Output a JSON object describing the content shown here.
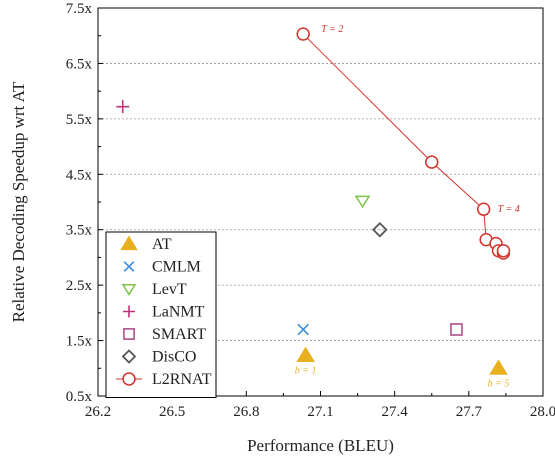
{
  "chart_data": {
    "type": "scatter",
    "xlabel": "Performance (BLEU)",
    "ylabel": "Relative Decoding Speedup wrt AT",
    "xlim": [
      26.2,
      28.0
    ],
    "ylim": [
      0.5,
      7.5
    ],
    "xticks": [
      26.2,
      26.5,
      26.8,
      27.1,
      27.4,
      27.7,
      28.0
    ],
    "xtick_labels": [
      "26.2",
      "26.5",
      "26.8",
      "27.1",
      "27.4",
      "27.7",
      "28.0"
    ],
    "yticks": [
      0.5,
      1.5,
      2.5,
      3.5,
      4.5,
      5.5,
      6.5,
      7.5
    ],
    "ytick_labels": [
      "0.5x",
      "1.5x",
      "2.5x",
      "3.5x",
      "4.5x",
      "5.5x",
      "6.5x",
      "7.5x"
    ],
    "grid": "horizontal",
    "legend_position": "bottom-left",
    "series": [
      {
        "name": "AT",
        "marker": "triangle-filled",
        "color": "#e8b01f",
        "points": [
          [
            27.04,
            1.23
          ],
          [
            27.82,
            1.0
          ]
        ]
      },
      {
        "name": "CMLM",
        "marker": "x",
        "color": "#3a8de0",
        "points": [
          [
            27.03,
            1.7
          ]
        ]
      },
      {
        "name": "LevT",
        "marker": "triangle-down",
        "color": "#7cc24a",
        "points": [
          [
            27.27,
            4.02
          ]
        ]
      },
      {
        "name": "LaNMT",
        "marker": "plus",
        "color": "#c0307a",
        "points": [
          [
            26.3,
            5.72
          ]
        ]
      },
      {
        "name": "SMART",
        "marker": "square",
        "color": "#b04f8a",
        "points": [
          [
            27.65,
            1.7
          ]
        ]
      },
      {
        "name": "DisCO",
        "marker": "diamond",
        "color": "#555555",
        "points": [
          [
            27.34,
            3.5
          ]
        ]
      },
      {
        "name": "L2RNAT",
        "marker": "circle",
        "color": "#d0342c",
        "line": true,
        "points": [
          [
            27.03,
            7.03
          ],
          [
            27.55,
            4.72
          ],
          [
            27.76,
            3.87
          ],
          [
            27.77,
            3.32
          ],
          [
            27.81,
            3.25
          ],
          [
            27.82,
            3.12
          ],
          [
            27.84,
            3.08
          ],
          [
            27.84,
            3.12
          ]
        ]
      }
    ],
    "annotations": [
      {
        "text": "T = 2",
        "x": 27.03,
        "y": 7.03,
        "color": "#d0342c"
      },
      {
        "text": "T = 4",
        "x": 27.76,
        "y": 3.87,
        "color": "#d0342c"
      },
      {
        "text": "b = 1",
        "x": 27.04,
        "y": 1.23,
        "color": "#e8b01f"
      },
      {
        "text": "b = 5",
        "x": 27.82,
        "y": 1.0,
        "color": "#e8b01f"
      }
    ]
  }
}
